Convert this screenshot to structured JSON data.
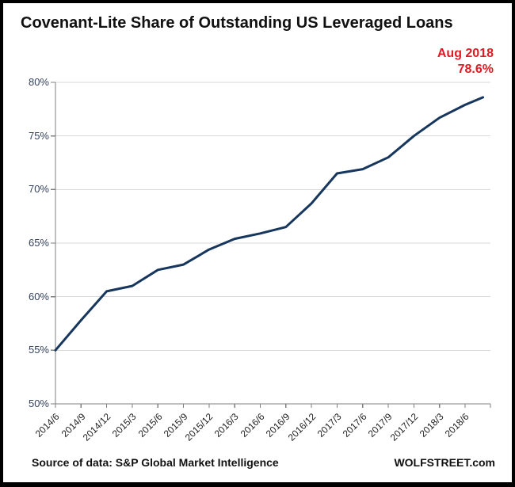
{
  "title": "Covenant-Lite Share of Outstanding US Leveraged Loans",
  "annotation": {
    "date": "Aug 2018",
    "value": "78.6%",
    "color": "#e01b24"
  },
  "footer": {
    "source": "Source of data: S&P Global Market Intelligence",
    "credit": "WOLFSTREET.com"
  },
  "chart_data": {
    "type": "line",
    "title": "Covenant-Lite Share of Outstanding US Leveraged Loans",
    "xlabel": "",
    "ylabel": "",
    "ylim": [
      50,
      80
    ],
    "y_ticks": [
      80,
      75,
      70,
      65,
      60,
      55,
      50
    ],
    "y_tick_labels": [
      "80%",
      "75%",
      "70%",
      "65%",
      "60%",
      "55%",
      "50%"
    ],
    "x_tick_labels": [
      "2014/6",
      "2014/9",
      "2014/12",
      "2015/3",
      "2015/6",
      "2015/9",
      "2015/12",
      "2016/3",
      "2016/6",
      "2016/9",
      "2016/12",
      "2017/3",
      "2017/6",
      "2017/9",
      "2017/12",
      "2018/3",
      "2018/6"
    ],
    "grid": "horizontal",
    "legend_position": "none",
    "colors": {
      "line": "#17365d",
      "grid": "#d9d9d9",
      "axis": "#7f7f7f"
    },
    "series": [
      {
        "name": "Covenant-lite share of outstanding US leveraged loans (%)",
        "x_positions": [
          0,
          1,
          2,
          3,
          4,
          5,
          6,
          7,
          8,
          9,
          10,
          11,
          12,
          13,
          14,
          15,
          16,
          16.7
        ],
        "points": [
          [
            "2014/6",
            55.0
          ],
          [
            "2014/9",
            57.8
          ],
          [
            "2014/12",
            60.5
          ],
          [
            "2015/3",
            61.0
          ],
          [
            "2015/6",
            62.5
          ],
          [
            "2015/9",
            63.0
          ],
          [
            "2015/12",
            64.4
          ],
          [
            "2016/3",
            65.4
          ],
          [
            "2016/6",
            65.9
          ],
          [
            "2016/9",
            66.5
          ],
          [
            "2016/12",
            68.7
          ],
          [
            "2017/3",
            71.5
          ],
          [
            "2017/6",
            71.9
          ],
          [
            "2017/9",
            73.0
          ],
          [
            "2017/12",
            75.0
          ],
          [
            "2018/3",
            76.7
          ],
          [
            "2018/6",
            77.9
          ],
          [
            "Aug 2018",
            78.6
          ]
        ]
      }
    ]
  }
}
